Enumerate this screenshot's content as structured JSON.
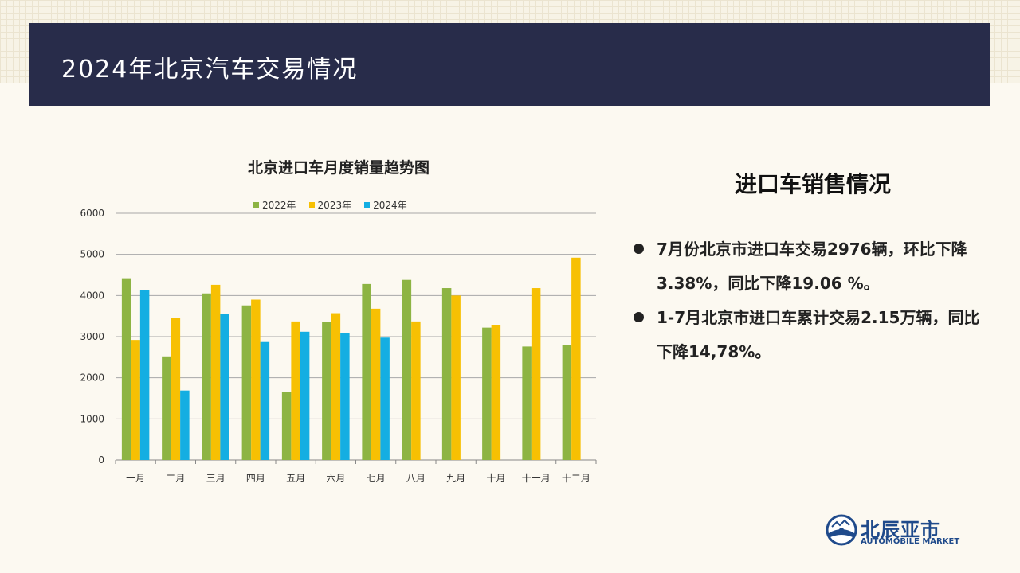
{
  "header": {
    "title": "2024年北京汽车交易情况"
  },
  "right": {
    "heading": "进口车销售情况",
    "bullets": [
      "7月份北京市进口车交易2976辆，环比下降3.38%，同比下降19.06 %。",
      "1-7月北京市进口车累计交易2.15万辆，同比下降14,78%。"
    ]
  },
  "logo": {
    "cn": "北辰亚市",
    "en": "AUTOMOBILE MARKET"
  },
  "colors": {
    "s2022": "#8db443",
    "s2023": "#f7c003",
    "s2024": "#14aee2",
    "header_bg": "#282c4a"
  },
  "chart_data": {
    "type": "bar",
    "title": "北京进口车月度销量趋势图",
    "categories": [
      "一月",
      "二月",
      "三月",
      "四月",
      "五月",
      "六月",
      "七月",
      "八月",
      "九月",
      "十月",
      "十一月",
      "十二月"
    ],
    "series": [
      {
        "name": "2022年",
        "values": [
          4420,
          2520,
          4050,
          3760,
          1650,
          3350,
          4280,
          4380,
          4180,
          3220,
          2760,
          2790
        ]
      },
      {
        "name": "2023年",
        "values": [
          2920,
          3450,
          4260,
          3900,
          3370,
          3570,
          3680,
          3370,
          4000,
          3290,
          4180,
          4920
        ]
      },
      {
        "name": "2024年",
        "values": [
          4130,
          1690,
          3560,
          2870,
          3120,
          3080,
          2976,
          null,
          null,
          null,
          null,
          null
        ]
      }
    ],
    "ylim": [
      0,
      6000
    ],
    "yticks": [
      0,
      1000,
      2000,
      3000,
      4000,
      5000,
      6000
    ],
    "grid": true,
    "legend": "top"
  }
}
